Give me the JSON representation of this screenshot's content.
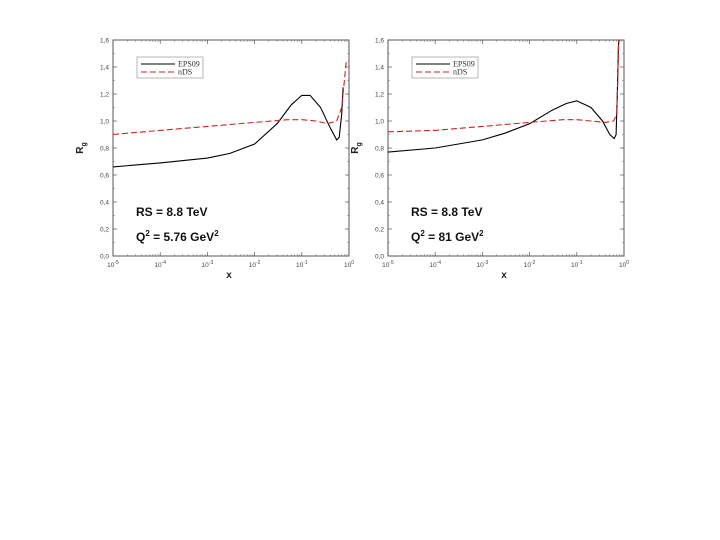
{
  "chart_data": [
    {
      "type": "line",
      "xscale": "log",
      "xlabel": "x",
      "ylabel": "R",
      "ylabel_sub": "g",
      "xlim": [
        1e-05,
        1
      ],
      "ylim": [
        0,
        1.6
      ],
      "y_tick_labels": [
        "0,0",
        "0,2",
        "0,4",
        "0,6",
        "0,8",
        "1,0",
        "1,2",
        "1,4",
        "1,6"
      ],
      "x_tick_labels": [
        {
          "base": "10",
          "exp": "-5"
        },
        {
          "base": "10",
          "exp": "-4"
        },
        {
          "base": "10",
          "exp": "-3"
        },
        {
          "base": "10",
          "exp": "-2"
        },
        {
          "base": "10",
          "exp": "-1"
        },
        {
          "base": "10",
          "exp": "0"
        }
      ],
      "grid": false,
      "legend_position": "top-left",
      "annotations": {
        "line1": "RS = 8.8 TeV",
        "line2_prefix": "Q",
        "line2_sup": "2",
        "line2_mid": " = 5.76 GeV",
        "line2_sup2": "2"
      },
      "series": [
        {
          "name": "EPS09",
          "color": "#000000",
          "style": "solid",
          "points": [
            [
              1e-05,
              0.66
            ],
            [
              0.0001,
              0.69
            ],
            [
              0.001,
              0.725
            ],
            [
              0.003,
              0.76
            ],
            [
              0.01,
              0.83
            ],
            [
              0.03,
              0.98
            ],
            [
              0.06,
              1.12
            ],
            [
              0.1,
              1.19
            ],
            [
              0.15,
              1.19
            ],
            [
              0.25,
              1.1
            ],
            [
              0.4,
              0.95
            ],
            [
              0.55,
              0.86
            ],
            [
              0.62,
              0.88
            ],
            [
              0.7,
              1.05
            ],
            [
              0.75,
              1.25
            ]
          ]
        },
        {
          "name": "nDS",
          "color": "#cc2222",
          "style": "dashed",
          "points": [
            [
              1e-05,
              0.9
            ],
            [
              0.0001,
              0.93
            ],
            [
              0.001,
              0.96
            ],
            [
              0.01,
              0.99
            ],
            [
              0.05,
              1.01
            ],
            [
              0.1,
              1.01
            ],
            [
              0.2,
              1.0
            ],
            [
              0.35,
              0.98
            ],
            [
              0.55,
              1.0
            ],
            [
              0.7,
              1.1
            ],
            [
              0.8,
              1.3
            ],
            [
              0.88,
              1.45
            ]
          ]
        }
      ]
    },
    {
      "type": "line",
      "xscale": "log",
      "xlabel": "x",
      "ylabel": "R",
      "ylabel_sub": "g",
      "xlim": [
        1e-05,
        1
      ],
      "ylim": [
        0,
        1.6
      ],
      "y_tick_labels": [
        "0,0",
        "0,2",
        "0,4",
        "0,6",
        "0,8",
        "1,0",
        "1,2",
        "1,4",
        "1,6"
      ],
      "x_tick_labels": [
        {
          "base": "10",
          "exp": "-5"
        },
        {
          "base": "10",
          "exp": "-4"
        },
        {
          "base": "10",
          "exp": "-3"
        },
        {
          "base": "10",
          "exp": "-2"
        },
        {
          "base": "10",
          "exp": "-1"
        },
        {
          "base": "10",
          "exp": "0"
        }
      ],
      "grid": false,
      "legend_position": "top-left",
      "annotations": {
        "line1": "RS = 8.8 TeV",
        "line2_prefix": "Q",
        "line2_sup": "2",
        "line2_mid": " = 81 GeV",
        "line2_sup2": "2"
      },
      "series": [
        {
          "name": "EPS09",
          "color": "#000000",
          "style": "solid",
          "points": [
            [
              1e-05,
              0.77
            ],
            [
              0.0001,
              0.8
            ],
            [
              0.001,
              0.86
            ],
            [
              0.003,
              0.91
            ],
            [
              0.01,
              0.98
            ],
            [
              0.03,
              1.08
            ],
            [
              0.06,
              1.13
            ],
            [
              0.1,
              1.15
            ],
            [
              0.2,
              1.1
            ],
            [
              0.35,
              1.0
            ],
            [
              0.5,
              0.9
            ],
            [
              0.62,
              0.87
            ],
            [
              0.68,
              0.9
            ],
            [
              0.72,
              1.2
            ],
            [
              0.76,
              1.55
            ],
            [
              0.78,
              1.6
            ]
          ]
        },
        {
          "name": "nDS",
          "color": "#cc2222",
          "style": "dashed",
          "points": [
            [
              1e-05,
              0.92
            ],
            [
              0.0001,
              0.93
            ],
            [
              0.001,
              0.96
            ],
            [
              0.01,
              0.99
            ],
            [
              0.05,
              1.01
            ],
            [
              0.1,
              1.01
            ],
            [
              0.2,
              1.0
            ],
            [
              0.4,
              0.99
            ],
            [
              0.6,
              1.0
            ],
            [
              0.7,
              1.05
            ],
            [
              0.74,
              1.3
            ],
            [
              0.77,
              1.6
            ]
          ]
        }
      ]
    }
  ],
  "legend": {
    "series1": "EPS09",
    "series2": "nDS"
  },
  "colors": {
    "eps09": "#000000",
    "nds": "#cc2222",
    "frame": "#555555"
  }
}
